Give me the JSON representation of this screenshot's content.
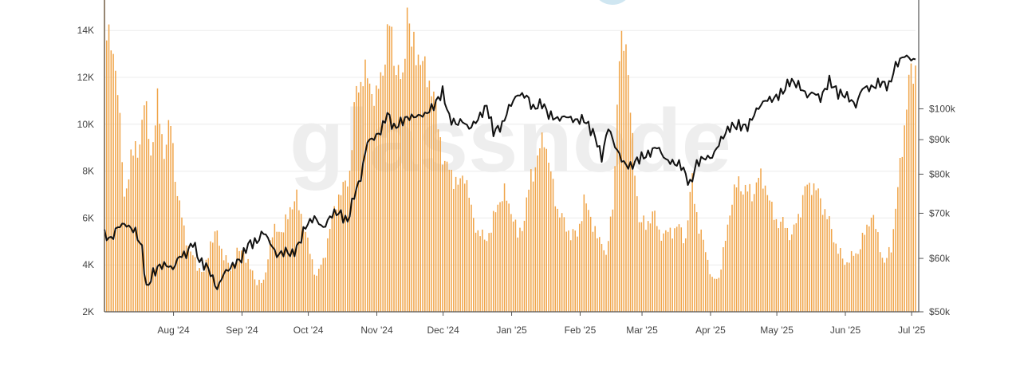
{
  "watermark": "glassnode",
  "colors": {
    "bars": "#f0a54a",
    "price_line": "#111111",
    "grid": "#ececec",
    "axis": "#555555",
    "watermark": "#eeeeee",
    "badge": "#cfe6f1"
  },
  "chart_data": {
    "type": "bar",
    "grid": true,
    "x_tick_labels": [
      "Aug '24",
      "Sep '24",
      "Oct '24",
      "Nov '24",
      "Dec '24",
      "Jan '25",
      "Feb '25",
      "Mar '25",
      "Apr '25",
      "May '25",
      "Jun '25",
      "Jul '25"
    ],
    "x_start": "2024-07-17",
    "x_end": "2025-07-19",
    "left_axis": {
      "tick_labels": [
        "2K",
        "4K",
        "6K",
        "8K",
        "10K",
        "12K",
        "14K"
      ],
      "range": [
        2000,
        15300
      ]
    },
    "right_axis": {
      "scale": "log",
      "tick_labels": [
        "$50k",
        "$60k",
        "$70k",
        "$80k",
        "$90k",
        "$100k"
      ],
      "range": [
        50000,
        145000
      ]
    },
    "series": [
      {
        "type": "bar",
        "axis": "left",
        "points": [
          [
            "2024-07-17",
            15300
          ],
          [
            "2024-07-20",
            13000
          ],
          [
            "2024-07-23",
            12000
          ],
          [
            "2024-07-26",
            6600
          ],
          [
            "2024-07-29",
            8800
          ],
          [
            "2024-08-01",
            8700
          ],
          [
            "2024-08-04",
            11000
          ],
          [
            "2024-08-07",
            8800
          ],
          [
            "2024-08-10",
            10800
          ],
          [
            "2024-08-13",
            8900
          ],
          [
            "2024-08-16",
            10000
          ],
          [
            "2024-08-19",
            7000
          ],
          [
            "2024-08-22",
            5500
          ],
          [
            "2024-08-25",
            4500
          ],
          [
            "2024-08-28",
            4000
          ],
          [
            "2024-08-31",
            3600
          ],
          [
            "2024-09-03",
            5000
          ],
          [
            "2024-09-06",
            5300
          ],
          [
            "2024-09-09",
            4400
          ],
          [
            "2024-09-12",
            3800
          ],
          [
            "2024-09-15",
            4500
          ],
          [
            "2024-09-18",
            4600
          ],
          [
            "2024-09-21",
            3800
          ],
          [
            "2024-09-24",
            3300
          ],
          [
            "2024-09-27",
            3200
          ],
          [
            "2024-09-30",
            5000
          ],
          [
            "2024-10-03",
            5600
          ],
          [
            "2024-10-06",
            5400
          ],
          [
            "2024-10-09",
            6500
          ],
          [
            "2024-10-12",
            6800
          ],
          [
            "2024-10-15",
            5800
          ],
          [
            "2024-10-18",
            4500
          ],
          [
            "2024-10-21",
            3500
          ],
          [
            "2024-10-24",
            4200
          ],
          [
            "2024-10-27",
            5500
          ],
          [
            "2024-10-30",
            6800
          ],
          [
            "2024-11-02",
            7200
          ],
          [
            "2024-11-05",
            8000
          ],
          [
            "2024-11-08",
            11500
          ],
          [
            "2024-11-11",
            12100
          ],
          [
            "2024-11-14",
            11800
          ],
          [
            "2024-11-17",
            11000
          ],
          [
            "2024-11-20",
            12500
          ],
          [
            "2024-11-23",
            14200
          ],
          [
            "2024-11-26",
            12500
          ],
          [
            "2024-11-29",
            11600
          ],
          [
            "2024-12-01",
            15300
          ],
          [
            "2024-12-03",
            13200
          ],
          [
            "2024-12-06",
            13100
          ],
          [
            "2024-12-09",
            12200
          ],
          [
            "2024-12-12",
            11700
          ],
          [
            "2024-12-15",
            10000
          ],
          [
            "2024-12-18",
            8200
          ],
          [
            "2024-12-21",
            8000
          ],
          [
            "2024-12-24",
            7300
          ],
          [
            "2024-12-27",
            8000
          ],
          [
            "2024-12-30",
            6300
          ],
          [
            "2025-01-02",
            5400
          ],
          [
            "2025-01-05",
            5100
          ],
          [
            "2025-01-08",
            5500
          ],
          [
            "2025-01-11",
            6700
          ],
          [
            "2025-01-14",
            7000
          ],
          [
            "2025-01-17",
            6400
          ],
          [
            "2025-01-20",
            5200
          ],
          [
            "2025-01-23",
            6000
          ],
          [
            "2025-01-26",
            7800
          ],
          [
            "2025-01-29",
            8500
          ],
          [
            "2025-02-01",
            9600
          ],
          [
            "2025-02-04",
            7800
          ],
          [
            "2025-02-07",
            6400
          ],
          [
            "2025-02-10",
            5800
          ],
          [
            "2025-02-13",
            5300
          ],
          [
            "2025-02-16",
            5300
          ],
          [
            "2025-02-19",
            6700
          ],
          [
            "2025-02-22",
            6100
          ],
          [
            "2025-02-25",
            5100
          ],
          [
            "2025-02-28",
            4900
          ],
          [
            "2025-03-01",
            4300
          ],
          [
            "2025-03-04",
            6500
          ],
          [
            "2025-03-07",
            12800
          ],
          [
            "2025-03-10",
            13800
          ],
          [
            "2025-03-13",
            9000
          ],
          [
            "2025-03-16",
            6000
          ],
          [
            "2025-03-19",
            5600
          ],
          [
            "2025-03-22",
            6300
          ],
          [
            "2025-03-25",
            5400
          ],
          [
            "2025-03-28",
            5300
          ],
          [
            "2025-03-31",
            5500
          ],
          [
            "2025-04-03",
            5600
          ],
          [
            "2025-04-06",
            5100
          ],
          [
            "2025-04-09",
            7700
          ],
          [
            "2025-04-12",
            5500
          ],
          [
            "2025-04-15",
            4700
          ],
          [
            "2025-04-18",
            3300
          ],
          [
            "2025-04-21",
            3500
          ],
          [
            "2025-04-24",
            5000
          ],
          [
            "2025-04-27",
            6900
          ],
          [
            "2025-04-30",
            7500
          ],
          [
            "2025-05-03",
            7200
          ],
          [
            "2025-05-06",
            7000
          ],
          [
            "2025-05-09",
            7700
          ],
          [
            "2025-05-12",
            7500
          ],
          [
            "2025-05-15",
            6300
          ],
          [
            "2025-05-18",
            5800
          ],
          [
            "2025-05-21",
            5700
          ],
          [
            "2025-05-24",
            5200
          ],
          [
            "2025-05-27",
            6100
          ],
          [
            "2025-05-30",
            7200
          ],
          [
            "2025-06-02",
            7500
          ],
          [
            "2025-06-05",
            7000
          ],
          [
            "2025-06-08",
            6300
          ],
          [
            "2025-06-11",
            5500
          ],
          [
            "2025-06-14",
            4600
          ],
          [
            "2025-06-17",
            4100
          ],
          [
            "2025-06-20",
            4300
          ],
          [
            "2025-06-23",
            4600
          ],
          [
            "2025-06-26",
            5300
          ],
          [
            "2025-06-29",
            6200
          ],
          [
            "2025-07-02",
            5200
          ],
          [
            "2025-07-05",
            4000
          ],
          [
            "2025-07-08",
            4800
          ],
          [
            "2025-07-11",
            7200
          ],
          [
            "2025-07-14",
            10000
          ],
          [
            "2025-07-16",
            11800
          ],
          [
            "2025-07-18",
            12200
          ],
          [
            "2025-07-19",
            12500
          ]
        ]
      },
      {
        "type": "line",
        "axis": "right",
        "points": [
          [
            "2024-07-17",
            65000
          ],
          [
            "2024-07-20",
            64000
          ],
          [
            "2024-07-23",
            66800
          ],
          [
            "2024-07-26",
            67500
          ],
          [
            "2024-07-29",
            66500
          ],
          [
            "2024-07-31",
            65800
          ],
          [
            "2024-08-03",
            62000
          ],
          [
            "2024-08-05",
            54000
          ],
          [
            "2024-08-08",
            57000
          ],
          [
            "2024-08-11",
            58500
          ],
          [
            "2024-08-14",
            58700
          ],
          [
            "2024-08-17",
            57900
          ],
          [
            "2024-08-20",
            60500
          ],
          [
            "2024-08-23",
            60800
          ],
          [
            "2024-08-26",
            63500
          ],
          [
            "2024-08-29",
            59500
          ],
          [
            "2024-09-02",
            58000
          ],
          [
            "2024-09-06",
            54000
          ],
          [
            "2024-09-09",
            57000
          ],
          [
            "2024-09-13",
            58500
          ],
          [
            "2024-09-17",
            60000
          ],
          [
            "2024-09-20",
            63000
          ],
          [
            "2024-09-24",
            63500
          ],
          [
            "2024-09-27",
            65800
          ],
          [
            "2024-09-30",
            63300
          ],
          [
            "2024-10-03",
            60600
          ],
          [
            "2024-10-07",
            61500
          ],
          [
            "2024-10-10",
            60800
          ],
          [
            "2024-10-13",
            63000
          ],
          [
            "2024-10-16",
            67000
          ],
          [
            "2024-10-20",
            69000
          ],
          [
            "2024-10-24",
            66500
          ],
          [
            "2024-10-28",
            69800
          ],
          [
            "2024-10-31",
            70200
          ],
          [
            "2024-11-04",
            68000
          ],
          [
            "2024-11-07",
            74500
          ],
          [
            "2024-11-10",
            79000
          ],
          [
            "2024-11-13",
            89500
          ],
          [
            "2024-11-16",
            90500
          ],
          [
            "2024-11-19",
            92500
          ],
          [
            "2024-11-22",
            98500
          ],
          [
            "2024-11-25",
            93500
          ],
          [
            "2024-11-28",
            95500
          ],
          [
            "2024-12-01",
            97000
          ],
          [
            "2024-12-05",
            97500
          ],
          [
            "2024-12-09",
            98000
          ],
          [
            "2024-12-13",
            101000
          ],
          [
            "2024-12-17",
            106000
          ],
          [
            "2024-12-20",
            97000
          ],
          [
            "2024-12-23",
            95000
          ],
          [
            "2024-12-26",
            96000
          ],
          [
            "2024-12-29",
            93500
          ],
          [
            "2025-01-02",
            96500
          ],
          [
            "2025-01-06",
            101000
          ],
          [
            "2025-01-09",
            92500
          ],
          [
            "2025-01-13",
            94500
          ],
          [
            "2025-01-16",
            100500
          ],
          [
            "2025-01-20",
            105000
          ],
          [
            "2025-01-24",
            104500
          ],
          [
            "2025-01-27",
            100000
          ],
          [
            "2025-01-31",
            102000
          ],
          [
            "2025-02-03",
            98000
          ],
          [
            "2025-02-07",
            96500
          ],
          [
            "2025-02-11",
            97500
          ],
          [
            "2025-02-15",
            96000
          ],
          [
            "2025-02-19",
            96500
          ],
          [
            "2025-02-24",
            91000
          ],
          [
            "2025-02-27",
            84500
          ],
          [
            "2025-03-02",
            94000
          ],
          [
            "2025-03-05",
            88000
          ],
          [
            "2025-03-09",
            83000
          ],
          [
            "2025-03-12",
            82000
          ],
          [
            "2025-03-16",
            84500
          ],
          [
            "2025-03-20",
            85500
          ],
          [
            "2025-03-24",
            88000
          ],
          [
            "2025-03-28",
            84000
          ],
          [
            "2025-04-01",
            83000
          ],
          [
            "2025-04-04",
            82500
          ],
          [
            "2025-04-08",
            77000
          ],
          [
            "2025-04-11",
            83000
          ],
          [
            "2025-04-14",
            84500
          ],
          [
            "2025-04-18",
            84800
          ],
          [
            "2025-04-22",
            90000
          ],
          [
            "2025-04-26",
            94000
          ],
          [
            "2025-04-30",
            94500
          ],
          [
            "2025-05-04",
            94000
          ],
          [
            "2025-05-08",
            99500
          ],
          [
            "2025-05-12",
            103000
          ],
          [
            "2025-05-16",
            103500
          ],
          [
            "2025-05-20",
            106000
          ],
          [
            "2025-05-23",
            110000
          ],
          [
            "2025-05-27",
            108500
          ],
          [
            "2025-05-31",
            104500
          ],
          [
            "2025-06-03",
            105800
          ],
          [
            "2025-06-06",
            103500
          ],
          [
            "2025-06-10",
            110000
          ],
          [
            "2025-06-14",
            105500
          ],
          [
            "2025-06-18",
            104500
          ],
          [
            "2025-06-22",
            101000
          ],
          [
            "2025-06-25",
            107500
          ],
          [
            "2025-06-29",
            107300
          ],
          [
            "2025-07-03",
            109500
          ],
          [
            "2025-07-07",
            108000
          ],
          [
            "2025-07-10",
            116000
          ],
          [
            "2025-07-14",
            120000
          ],
          [
            "2025-07-17",
            118500
          ],
          [
            "2025-07-19",
            118000
          ]
        ]
      }
    ]
  }
}
